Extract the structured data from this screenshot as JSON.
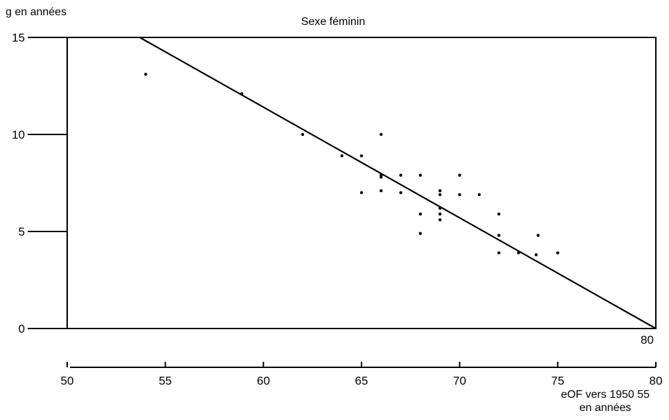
{
  "chart_data": {
    "type": "scatter",
    "title": "Sexe féminin",
    "ylabel": "g en années",
    "xlabel_line1": "eOF vers 1950 55",
    "xlabel_line2": "en années",
    "xlim": [
      50,
      80
    ],
    "ylim": [
      0,
      15
    ],
    "x_ticks": [
      "50",
      "55",
      "60",
      "65",
      "70",
      "75",
      "80"
    ],
    "y_ticks": [
      "0",
      "5",
      "10",
      "15"
    ],
    "corner_label": "80",
    "grid": false,
    "regression_line": {
      "x": [
        53.7,
        80
      ],
      "y": [
        15,
        0
      ]
    },
    "points": [
      {
        "x": 54.0,
        "y": 13.1
      },
      {
        "x": 58.9,
        "y": 12.1
      },
      {
        "x": 62.0,
        "y": 10.0
      },
      {
        "x": 64.0,
        "y": 8.9
      },
      {
        "x": 65.0,
        "y": 8.9
      },
      {
        "x": 65.0,
        "y": 7.0
      },
      {
        "x": 66.0,
        "y": 10.0
      },
      {
        "x": 66.0,
        "y": 7.9
      },
      {
        "x": 66.0,
        "y": 7.8
      },
      {
        "x": 66.0,
        "y": 7.1
      },
      {
        "x": 67.0,
        "y": 7.9
      },
      {
        "x": 67.0,
        "y": 7.0
      },
      {
        "x": 68.0,
        "y": 7.9
      },
      {
        "x": 68.0,
        "y": 5.9
      },
      {
        "x": 68.0,
        "y": 4.9
      },
      {
        "x": 69.0,
        "y": 7.1
      },
      {
        "x": 69.0,
        "y": 6.9
      },
      {
        "x": 69.0,
        "y": 6.2
      },
      {
        "x": 69.0,
        "y": 5.9
      },
      {
        "x": 69.0,
        "y": 5.6
      },
      {
        "x": 70.0,
        "y": 7.9
      },
      {
        "x": 70.0,
        "y": 6.9
      },
      {
        "x": 71.0,
        "y": 6.9
      },
      {
        "x": 72.0,
        "y": 5.9
      },
      {
        "x": 72.0,
        "y": 4.8
      },
      {
        "x": 72.0,
        "y": 3.9
      },
      {
        "x": 73.0,
        "y": 3.9
      },
      {
        "x": 73.9,
        "y": 3.8
      },
      {
        "x": 74.0,
        "y": 4.8
      },
      {
        "x": 75.0,
        "y": 3.9
      }
    ]
  }
}
